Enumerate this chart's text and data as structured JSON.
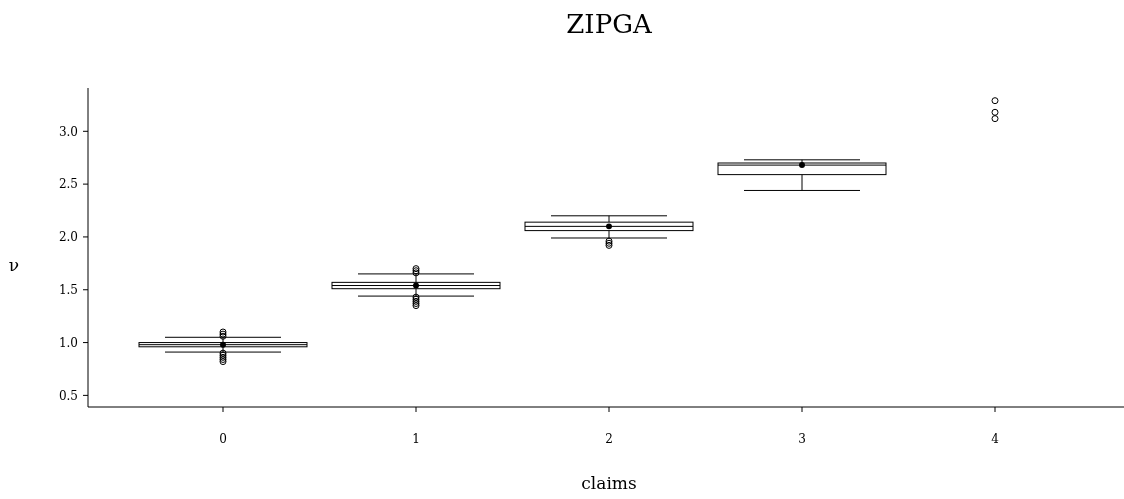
{
  "chart_data": {
    "type": "box",
    "title": "ZIPGA",
    "xlabel": "claims",
    "ylabel": "ν",
    "categories": [
      "0",
      "1",
      "2",
      "3",
      "4"
    ],
    "grid": false,
    "ylim": [
      0.39,
      3.41
    ],
    "yticks": [
      {
        "value": 0.5,
        "label": "0.5"
      },
      {
        "value": 1,
        "label": "1.0"
      },
      {
        "value": 1.5,
        "label": "1.5"
      },
      {
        "value": 2,
        "label": "2.0"
      },
      {
        "value": 2.5,
        "label": "2.5"
      },
      {
        "value": 3,
        "label": "3.0"
      }
    ],
    "boxes": [
      {
        "low": 0.91,
        "q1": 0.96,
        "median": 0.98,
        "q3": 1.0,
        "high": 1.05,
        "mean": 0.98,
        "outliers": [
          0.82,
          0.84,
          0.86,
          0.88,
          0.9,
          1.06,
          1.08,
          1.1
        ]
      },
      {
        "low": 1.44,
        "q1": 1.51,
        "median": 1.54,
        "q3": 1.57,
        "high": 1.65,
        "mean": 1.54,
        "outliers": [
          1.35,
          1.37,
          1.39,
          1.41,
          1.43,
          1.66,
          1.68,
          1.7
        ]
      },
      {
        "low": 1.99,
        "q1": 2.06,
        "median": 2.1,
        "q3": 2.14,
        "high": 2.2,
        "mean": 2.1,
        "outliers": [
          1.92,
          1.94,
          1.96
        ]
      },
      {
        "low": 2.44,
        "q1": 2.59,
        "median": 2.68,
        "q3": 2.7,
        "high": 2.73,
        "mean": 2.68
      },
      null
    ],
    "series": [
      {
        "type": "scatter",
        "x": [
          "4",
          "4",
          "4"
        ],
        "values": [
          3.12,
          3.18,
          3.29
        ],
        "color": "#000000",
        "marker": "circle"
      }
    ]
  }
}
